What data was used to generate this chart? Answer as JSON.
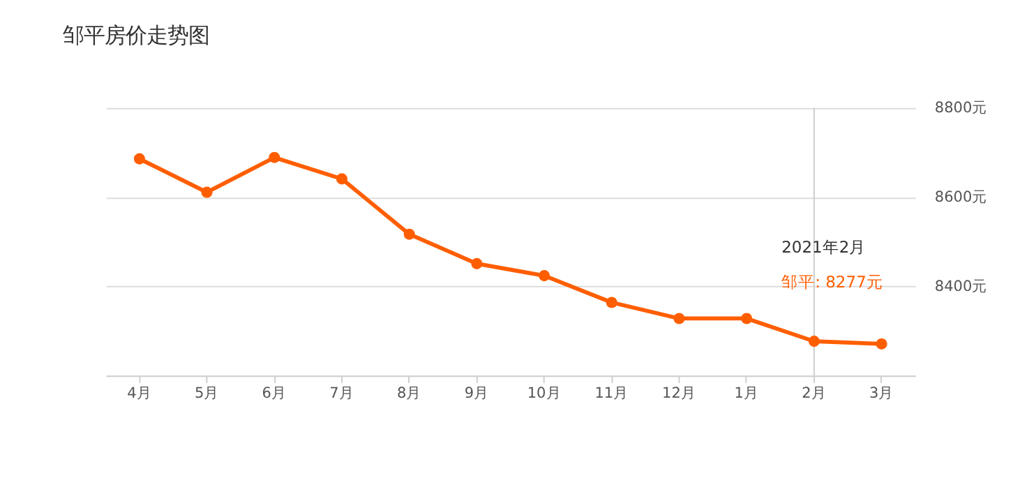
{
  "chart_data": {
    "type": "line",
    "title": "邹平房价走势图",
    "categories": [
      "4月",
      "5月",
      "6月",
      "7月",
      "8月",
      "9月",
      "10月",
      "11月",
      "12月",
      "1月",
      "2月",
      "3月"
    ],
    "series": [
      {
        "color": "#ff5e00",
        "values": [
          8686,
          8611,
          8689,
          8641,
          8517,
          8451,
          8424,
          8364,
          8328,
          8328,
          8277,
          8271
        ]
      }
    ],
    "ylim": [
      8200,
      8800
    ],
    "yticks": [
      {
        "value": 8400,
        "label": "8400元"
      },
      {
        "value": 8600,
        "label": "8600元"
      },
      {
        "value": 8800,
        "label": "8800元"
      }
    ],
    "grid": "y",
    "marker": "circle",
    "line_style": "solid",
    "ref_lines": [
      {
        "axis": "x",
        "value": "2月",
        "color": "#cccccc"
      }
    ],
    "annotations": [
      "2021年2月",
      "邹平:  8277元"
    ]
  }
}
